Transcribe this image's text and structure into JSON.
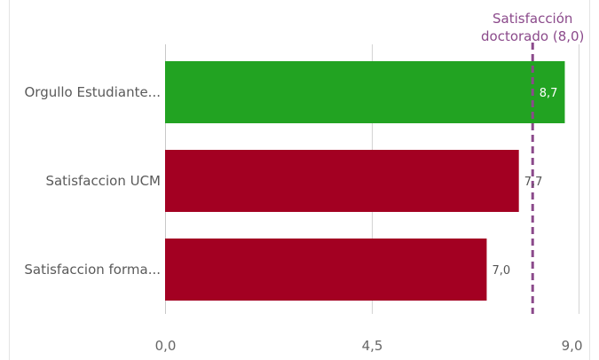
{
  "chart_data": {
    "type": "bar",
    "orientation": "horizontal",
    "categories": [
      "Orgullo Estudiante...",
      "Satisfaccion UCM",
      "Satisfaccion forma..."
    ],
    "values": [
      8.7,
      7.7,
      7.0
    ],
    "value_labels": [
      "8,7",
      "7,7",
      "7,0"
    ],
    "bar_colors": [
      "#22a322",
      "#a30022",
      "#a30022"
    ],
    "xlim": [
      0,
      9.0
    ],
    "xticks": [
      0,
      4.5,
      9.0
    ],
    "xtick_labels": [
      "0,0",
      "4,5",
      "9,0"
    ],
    "grid": true,
    "reference_line": {
      "value": 8.0,
      "label_lines": [
        "Satisfacción",
        "doctorado (8,0)"
      ],
      "color": "#8b4a8b",
      "style": "dashed"
    }
  }
}
